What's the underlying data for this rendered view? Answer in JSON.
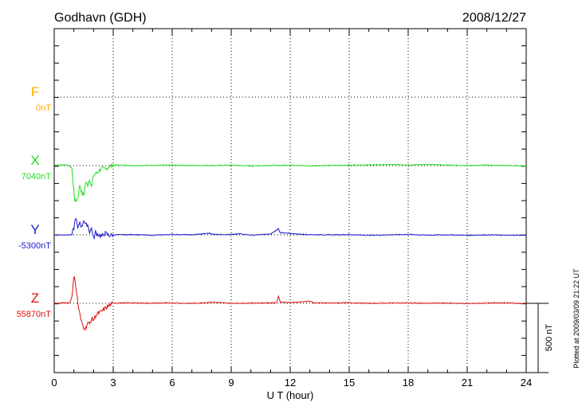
{
  "header": {
    "station": "Godhavn (GDH)",
    "date": "2008/12/27"
  },
  "plotted_note": "Plotted at 2009/03/09 21:22 UT",
  "scale_bar": {
    "label": "500 nT",
    "value_nT": 500
  },
  "colors": {
    "F": "#ffaa00",
    "X": "#22dd22",
    "Y": "#1a1acc",
    "Z": "#dd1111",
    "frame": "#000000",
    "grid": "#000000"
  },
  "chart_data": {
    "type": "line",
    "title": "Godhavn (GDH)",
    "date": "2008/12/27",
    "xlabel": "U T (hour)",
    "xlim": [
      0,
      24
    ],
    "xticks": [
      0,
      3,
      6,
      9,
      12,
      15,
      18,
      21,
      24
    ],
    "ylabel": "",
    "grid": true,
    "units": "nT",
    "scale_bar_nT": 500,
    "series": [
      {
        "name": "F",
        "baseline_label": "0nT",
        "baseline_nT": 0,
        "points": []
      },
      {
        "name": "X",
        "baseline_label": "7040nT",
        "baseline_nT": 7040,
        "points": [
          [
            0,
            5
          ],
          [
            0.7,
            5
          ],
          [
            0.9,
            -20
          ],
          [
            1.0,
            -190
          ],
          [
            1.05,
            -250
          ],
          [
            1.1,
            -255
          ],
          [
            1.2,
            -230
          ],
          [
            1.3,
            -140
          ],
          [
            1.4,
            -195
          ],
          [
            1.5,
            -215
          ],
          [
            1.6,
            -120
          ],
          [
            1.7,
            -140
          ],
          [
            1.8,
            -95
          ],
          [
            1.9,
            -155
          ],
          [
            2.0,
            -70
          ],
          [
            2.2,
            -50
          ],
          [
            2.4,
            -20
          ],
          [
            2.6,
            -25
          ],
          [
            2.8,
            -8
          ],
          [
            3.0,
            5
          ],
          [
            4,
            0
          ],
          [
            5,
            2
          ],
          [
            6,
            3
          ],
          [
            7,
            1
          ],
          [
            8,
            0
          ],
          [
            9,
            3
          ],
          [
            10,
            -3
          ],
          [
            11,
            2
          ],
          [
            11.4,
            0
          ],
          [
            12,
            4
          ],
          [
            13,
            -3
          ],
          [
            14,
            1
          ],
          [
            15,
            3
          ],
          [
            16,
            5
          ],
          [
            17,
            8
          ],
          [
            18,
            5
          ],
          [
            19,
            8
          ],
          [
            20,
            4
          ],
          [
            21,
            0
          ],
          [
            22,
            3
          ],
          [
            23,
            0
          ],
          [
            24,
            -2
          ]
        ]
      },
      {
        "name": "Y",
        "baseline_label": "-5300nT",
        "baseline_nT": -5300,
        "points": [
          [
            0,
            0
          ],
          [
            0.9,
            0
          ],
          [
            1.0,
            50
          ],
          [
            1.1,
            130
          ],
          [
            1.2,
            40
          ],
          [
            1.3,
            95
          ],
          [
            1.4,
            55
          ],
          [
            1.5,
            110
          ],
          [
            1.6,
            70
          ],
          [
            1.7,
            75
          ],
          [
            1.8,
            20
          ],
          [
            1.9,
            50
          ],
          [
            2.0,
            -30
          ],
          [
            2.1,
            20
          ],
          [
            2.2,
            5
          ],
          [
            2.4,
            -10
          ],
          [
            2.6,
            12
          ],
          [
            2.8,
            -5
          ],
          [
            3,
            0
          ],
          [
            4,
            2
          ],
          [
            5,
            -3
          ],
          [
            6,
            3
          ],
          [
            7,
            0
          ],
          [
            7.9,
            12
          ],
          [
            8.1,
            4
          ],
          [
            9,
            2
          ],
          [
            9.5,
            8
          ],
          [
            10,
            -2
          ],
          [
            11,
            5
          ],
          [
            11.4,
            45
          ],
          [
            11.5,
            15
          ],
          [
            12,
            10
          ],
          [
            12.5,
            5
          ],
          [
            13,
            2
          ],
          [
            14,
            0
          ],
          [
            15,
            2
          ],
          [
            16,
            -3
          ],
          [
            17,
            0
          ],
          [
            18,
            3
          ],
          [
            19,
            -2
          ],
          [
            20,
            0
          ],
          [
            21,
            -3
          ],
          [
            22,
            0
          ],
          [
            23,
            -3
          ],
          [
            24,
            -2
          ]
        ]
      },
      {
        "name": "Z",
        "baseline_label": "55870nT",
        "baseline_nT": 55870,
        "points": [
          [
            0,
            0
          ],
          [
            0.8,
            5
          ],
          [
            0.9,
            50
          ],
          [
            1.0,
            180
          ],
          [
            1.05,
            185
          ],
          [
            1.1,
            120
          ],
          [
            1.2,
            5
          ],
          [
            1.35,
            -120
          ],
          [
            1.5,
            -175
          ],
          [
            1.6,
            -180
          ],
          [
            1.7,
            -140
          ],
          [
            1.8,
            -150
          ],
          [
            1.9,
            -110
          ],
          [
            2.0,
            -120
          ],
          [
            2.1,
            -90
          ],
          [
            2.2,
            -75
          ],
          [
            2.4,
            -60
          ],
          [
            2.6,
            -35
          ],
          [
            2.8,
            -15
          ],
          [
            3.0,
            2
          ],
          [
            4,
            3
          ],
          [
            5,
            1
          ],
          [
            6,
            3
          ],
          [
            7,
            -1
          ],
          [
            8,
            8
          ],
          [
            9,
            0
          ],
          [
            10,
            2
          ],
          [
            11,
            3
          ],
          [
            11.3,
            5
          ],
          [
            11.4,
            50
          ],
          [
            11.5,
            10
          ],
          [
            12,
            5
          ],
          [
            13,
            15
          ],
          [
            13.2,
            3
          ],
          [
            14,
            2
          ],
          [
            15,
            4
          ],
          [
            16,
            0
          ],
          [
            17,
            2
          ],
          [
            18,
            3
          ],
          [
            19,
            0
          ],
          [
            20,
            2
          ],
          [
            21,
            -2
          ],
          [
            22,
            2
          ],
          [
            23,
            3
          ],
          [
            24,
            -2
          ]
        ]
      }
    ]
  }
}
